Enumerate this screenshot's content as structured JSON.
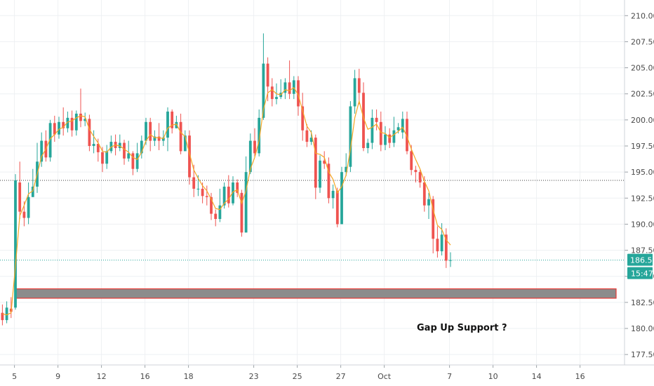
{
  "chart_data": {
    "type": "candlestick",
    "colors": {
      "up": "#26a69a",
      "down": "#ef5350",
      "ma": "#f5a623",
      "grid": "#eef0f3",
      "axis_text": "#4a4a4a",
      "support_zone_fill": "#8c8c8c",
      "support_zone_border": "#e53935",
      "h_line": "#3d3d3d",
      "price_line": "#26a69a"
    },
    "y_axis": {
      "min": 176.5,
      "max": 211.5,
      "ticks": [
        "210.00",
        "207.50",
        "205.00",
        "202.50",
        "200.00",
        "197.50",
        "195.00",
        "192.50",
        "190.00",
        "187.50",
        "185.00",
        "182.50",
        "180.00",
        "177.50"
      ]
    },
    "x_axis": {
      "ticks": [
        {
          "label": "5",
          "i": 3
        },
        {
          "label": "9",
          "i": 13
        },
        {
          "label": "12",
          "i": 23
        },
        {
          "label": "16",
          "i": 33
        },
        {
          "label": "18",
          "i": 43
        },
        {
          "label": "23",
          "i": 58
        },
        {
          "label": "25",
          "i": 68
        },
        {
          "label": "27",
          "i": 78
        },
        {
          "label": "Oct",
          "i": 88
        },
        {
          "label": "7",
          "i": 103
        },
        {
          "label": "10",
          "i": 113
        },
        {
          "label": "14",
          "i": 123
        },
        {
          "label": "16",
          "i": 133
        }
      ]
    },
    "candles": [
      [
        181.5,
        180.8,
        182.3,
        180.3
      ],
      [
        180.8,
        182.0,
        182.6,
        180.5
      ],
      [
        181.9,
        181.6,
        183.0,
        181.0
      ],
      [
        182.0,
        194.2,
        194.8,
        181.8
      ],
      [
        194.0,
        191.2,
        196.0,
        190.5
      ],
      [
        191.2,
        190.6,
        192.2,
        189.8
      ],
      [
        190.6,
        192.6,
        194.0,
        190.0
      ],
      [
        192.6,
        193.6,
        195.3,
        192.8
      ],
      [
        193.6,
        196.0,
        197.8,
        193.0
      ],
      [
        196.0,
        198.0,
        198.8,
        195.5
      ],
      [
        198.0,
        196.4,
        199.0,
        196.0
      ],
      [
        196.4,
        199.7,
        200.0,
        196.0
      ],
      [
        199.7,
        198.6,
        200.4,
        197.9
      ],
      [
        198.6,
        199.8,
        200.3,
        198.2
      ],
      [
        199.8,
        199.2,
        201.2,
        198.5
      ],
      [
        199.2,
        200.2,
        200.8,
        198.8
      ],
      [
        200.2,
        199.0,
        200.9,
        198.4
      ],
      [
        199.0,
        200.6,
        200.9,
        198.5
      ],
      [
        200.6,
        199.9,
        203.0,
        199.3
      ],
      [
        199.9,
        200.1,
        200.7,
        199.4
      ],
      [
        200.1,
        197.5,
        200.5,
        197.0
      ],
      [
        197.5,
        197.7,
        199.0,
        196.8
      ],
      [
        197.7,
        196.9,
        198.2,
        196.0
      ],
      [
        196.9,
        195.8,
        197.4,
        195.0
      ],
      [
        195.8,
        197.0,
        197.6,
        195.3
      ],
      [
        197.0,
        197.9,
        198.5,
        196.8
      ],
      [
        197.9,
        197.3,
        198.6,
        196.6
      ],
      [
        197.3,
        197.8,
        198.6,
        197.0
      ],
      [
        197.8,
        196.3,
        198.1,
        195.7
      ],
      [
        196.3,
        196.8,
        198.0,
        196.0
      ],
      [
        196.8,
        195.3,
        197.0,
        194.7
      ],
      [
        195.3,
        196.8,
        197.8,
        195.0
      ],
      [
        196.8,
        198.0,
        198.5,
        196.3
      ],
      [
        198.0,
        199.8,
        200.2,
        197.6
      ],
      [
        199.8,
        198.0,
        200.2,
        197.0
      ],
      [
        198.0,
        198.4,
        199.0,
        197.5
      ],
      [
        198.4,
        198.0,
        199.7,
        197.1
      ],
      [
        198.0,
        198.3,
        199.0,
        197.5
      ],
      [
        198.3,
        200.8,
        201.2,
        197.0
      ],
      [
        200.8,
        199.2,
        201.0,
        198.7
      ],
      [
        199.2,
        199.8,
        200.4,
        199.2
      ],
      [
        199.8,
        197.0,
        200.6,
        196.7
      ],
      [
        197.0,
        198.5,
        199.0,
        197.1
      ],
      [
        198.5,
        194.5,
        199.0,
        193.8
      ],
      [
        194.5,
        193.4,
        195.7,
        192.6
      ],
      [
        193.4,
        193.4,
        194.7,
        192.7
      ],
      [
        193.4,
        192.7,
        194.0,
        192.0
      ],
      [
        192.7,
        192.6,
        193.7,
        191.8
      ],
      [
        192.6,
        191.0,
        193.0,
        190.4
      ],
      [
        191.0,
        190.5,
        191.4,
        189.8
      ],
      [
        190.5,
        191.8,
        193.4,
        190.2
      ],
      [
        191.8,
        193.6,
        194.0,
        191.5
      ],
      [
        193.6,
        192.0,
        194.7,
        191.6
      ],
      [
        192.0,
        194.0,
        194.6,
        191.8
      ],
      [
        194.0,
        193.0,
        194.3,
        192.6
      ],
      [
        193.0,
        189.2,
        193.3,
        188.8
      ],
      [
        189.2,
        195.0,
        196.5,
        189.2
      ],
      [
        195.0,
        198.0,
        198.7,
        194.8
      ],
      [
        198.0,
        196.8,
        199.2,
        196.5
      ],
      [
        196.8,
        200.2,
        201.0,
        196.5
      ],
      [
        200.2,
        205.4,
        208.3,
        200.0
      ],
      [
        205.4,
        203.2,
        206.0,
        201.8
      ],
      [
        203.2,
        202.0,
        204.0,
        201.3
      ],
      [
        202.0,
        202.2,
        203.5,
        201.5
      ],
      [
        202.2,
        202.6,
        203.9,
        202.0
      ],
      [
        202.6,
        203.6,
        204.0,
        202.0
      ],
      [
        203.6,
        202.5,
        205.7,
        202.0
      ],
      [
        202.5,
        203.8,
        204.2,
        202.0
      ],
      [
        203.8,
        201.3,
        204.2,
        200.4
      ],
      [
        201.3,
        199.0,
        202.6,
        198.0
      ],
      [
        199.0,
        197.9,
        199.6,
        197.4
      ],
      [
        197.9,
        198.3,
        199.0,
        197.6
      ],
      [
        198.3,
        193.5,
        198.6,
        192.4
      ],
      [
        193.5,
        196.1,
        196.6,
        193.0
      ],
      [
        196.1,
        195.8,
        197.0,
        195.3
      ],
      [
        195.8,
        192.5,
        196.4,
        192.0
      ],
      [
        192.5,
        193.2,
        193.8,
        191.5
      ],
      [
        193.2,
        190.0,
        193.5,
        189.7
      ],
      [
        190.0,
        195.0,
        195.5,
        190.0
      ],
      [
        195.0,
        195.5,
        196.8,
        194.6
      ],
      [
        195.5,
        201.3,
        201.8,
        195.0
      ],
      [
        201.3,
        204.0,
        204.8,
        200.6
      ],
      [
        204.0,
        202.6,
        204.9,
        201.5
      ],
      [
        202.6,
        197.3,
        203.6,
        197.0
      ],
      [
        197.3,
        197.8,
        198.2,
        196.8
      ],
      [
        197.8,
        200.2,
        201.0,
        197.2
      ],
      [
        200.2,
        199.8,
        201.0,
        199.0
      ],
      [
        199.8,
        197.6,
        200.8,
        197.0
      ],
      [
        197.6,
        198.6,
        199.4,
        197.1
      ],
      [
        198.6,
        197.8,
        199.2,
        197.3
      ],
      [
        197.8,
        199.0,
        200.3,
        197.4
      ],
      [
        199.0,
        199.3,
        199.7,
        198.7
      ]
    ],
    "candles_tail": [
      [
        198.8,
        200.1,
        200.8,
        198.2
      ],
      [
        200.1,
        197.0,
        200.8,
        196.7
      ],
      [
        197.0,
        195.2,
        197.6,
        194.7
      ],
      [
        195.2,
        195.0,
        195.6,
        194.0
      ],
      [
        195.0,
        194.0,
        195.2,
        193.5
      ],
      [
        194.0,
        191.8,
        194.6,
        191.2
      ],
      [
        191.8,
        192.4,
        193.0,
        190.5
      ],
      [
        192.4,
        188.6,
        192.7,
        187.2
      ],
      [
        188.6,
        187.4,
        189.8,
        186.8
      ],
      [
        187.4,
        189.0,
        190.1,
        187.0
      ],
      [
        189.0,
        186.5,
        189.6,
        185.8
      ],
      [
        186.5,
        186.55,
        187.3,
        185.9
      ]
    ],
    "ma_values": [
      181.4,
      181.3,
      181.5,
      186.0,
      190.8,
      191.8,
      192.9,
      193.2,
      194.8,
      196.5,
      197.2,
      198.2,
      198.6,
      199.1,
      199.3,
      199.8,
      199.9,
      200.2,
      200.4,
      200.3,
      199.1,
      198.4,
      197.8,
      197.0,
      196.9,
      197.4,
      197.6,
      197.5,
      197.2,
      196.9,
      196.4,
      196.2,
      196.9,
      198.0,
      198.6,
      198.3,
      198.3,
      198.2,
      199.2,
      199.5,
      199.6,
      198.8,
      198.4,
      196.8,
      195.2,
      194.4,
      193.7,
      193.2,
      192.4,
      191.5,
      191.4,
      192.0,
      192.4,
      193.1,
      193.3,
      192.0,
      193.2,
      195.3,
      196.4,
      198.0,
      201.0,
      202.6,
      202.9,
      202.5,
      202.4,
      202.9,
      202.8,
      203.1,
      202.4,
      200.9,
      199.4,
      198.8,
      196.8,
      196.7,
      196.4,
      195.0,
      194.3,
      193.0,
      193.6,
      194.7,
      197.2,
      200.2,
      201.8,
      200.2,
      199.1,
      199.3,
      199.6,
      198.8,
      198.7,
      198.3,
      198.6,
      198.9,
      199.3,
      198.4,
      197.2,
      196.2,
      195.3,
      194.1,
      193.2,
      191.4,
      189.9,
      189.5,
      188.5,
      188.0
    ],
    "support_zone": {
      "top": 183.8,
      "bottom": 182.9
    },
    "h_line_value": 194.2,
    "current_price": "186.55",
    "countdown": "15:47",
    "annotation": "Gap Up Support ?"
  }
}
